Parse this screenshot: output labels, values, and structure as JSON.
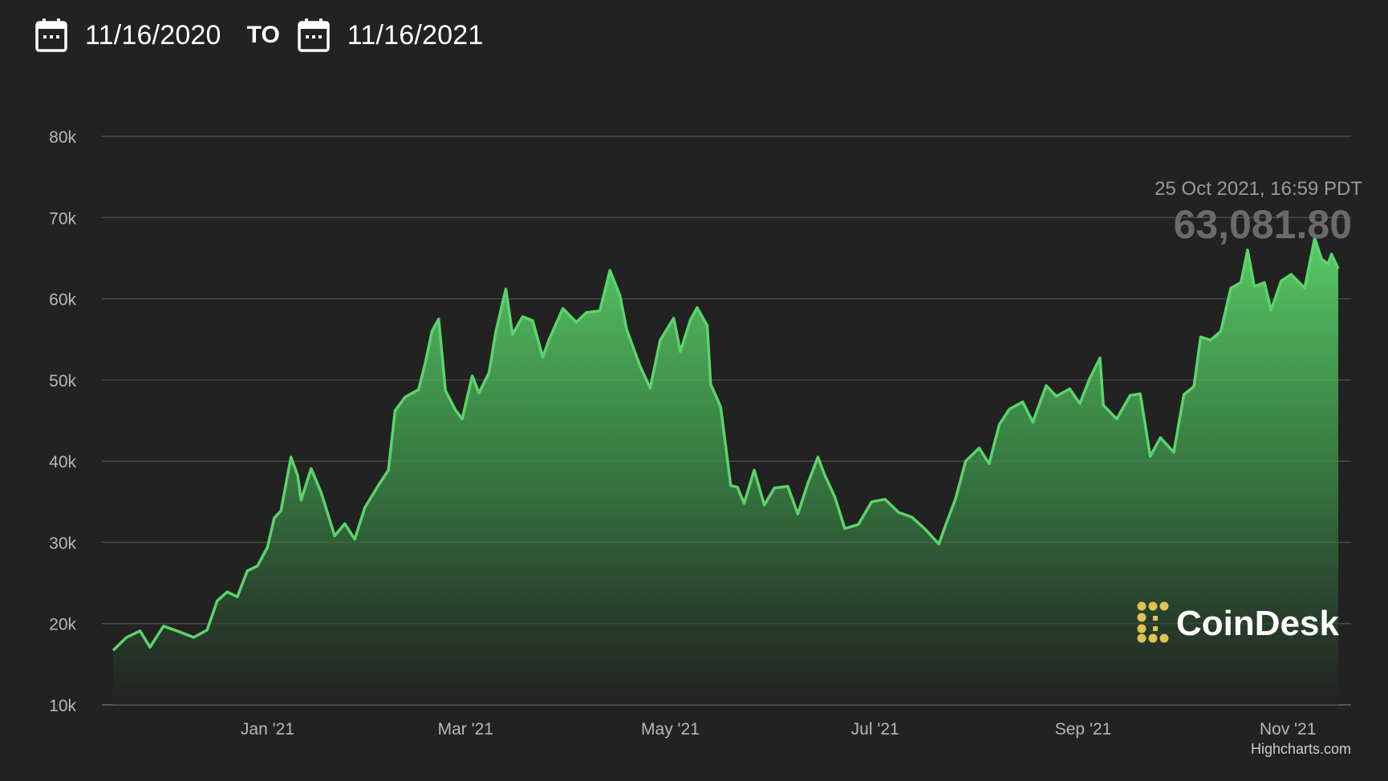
{
  "range": {
    "from": "11/16/2020",
    "to_label": "TO",
    "to": "11/16/2021"
  },
  "icons": {
    "from": "calendar-icon",
    "to": "calendar-icon"
  },
  "tooltip": {
    "date": "25 Oct 2021, 16:59 PDT",
    "value": "63,081.80"
  },
  "brand": {
    "name": "CoinDesk",
    "logo_color": "#e0c252"
  },
  "credits": "Highcharts.com",
  "colors": {
    "line": "#5bd46a",
    "background": "#222222",
    "grid": "#4a4a4a"
  },
  "chart_data": {
    "type": "area",
    "title": "",
    "xlabel": "",
    "ylabel": "",
    "ylim": [
      10000,
      80000
    ],
    "y_ticks": [
      "10k",
      "20k",
      "30k",
      "40k",
      "50k",
      "60k",
      "70k",
      "80k"
    ],
    "y_tick_values": [
      10000,
      20000,
      30000,
      40000,
      50000,
      60000,
      70000,
      80000
    ],
    "x_tick_labels": [
      "Jan '21",
      "Mar '21",
      "May '21",
      "Jul '21",
      "Sep '21",
      "Nov '21"
    ],
    "x_tick_dates": [
      "2021-01-01",
      "2021-03-01",
      "2021-05-01",
      "2021-07-01",
      "2021-09-01",
      "2021-11-01"
    ],
    "x_range": [
      "2020-11-16",
      "2021-11-16"
    ],
    "grid": true,
    "legend": "none",
    "series": [
      {
        "points": [
          [
            "2020-11-16",
            16700
          ],
          [
            "2020-11-20",
            18300
          ],
          [
            "2020-11-24",
            19100
          ],
          [
            "2020-11-27",
            17100
          ],
          [
            "2020-12-01",
            19700
          ],
          [
            "2020-12-05",
            19100
          ],
          [
            "2020-12-10",
            18300
          ],
          [
            "2020-12-14",
            19200
          ],
          [
            "2020-12-17",
            22800
          ],
          [
            "2020-12-20",
            23900
          ],
          [
            "2020-12-23",
            23300
          ],
          [
            "2020-12-26",
            26500
          ],
          [
            "2020-12-29",
            27100
          ],
          [
            "2021-01-01",
            29400
          ],
          [
            "2021-01-03",
            33000
          ],
          [
            "2021-01-05",
            33900
          ],
          [
            "2021-01-08",
            40500
          ],
          [
            "2021-01-10",
            38200
          ],
          [
            "2021-01-11",
            35200
          ],
          [
            "2021-01-14",
            39100
          ],
          [
            "2021-01-17",
            36100
          ],
          [
            "2021-01-21",
            30800
          ],
          [
            "2021-01-24",
            32300
          ],
          [
            "2021-01-27",
            30400
          ],
          [
            "2021-01-30",
            34300
          ],
          [
            "2021-02-03",
            37000
          ],
          [
            "2021-02-06",
            38900
          ],
          [
            "2021-02-08",
            46200
          ],
          [
            "2021-02-11",
            47900
          ],
          [
            "2021-02-15",
            48800
          ],
          [
            "2021-02-17",
            52100
          ],
          [
            "2021-02-19",
            56000
          ],
          [
            "2021-02-21",
            57500
          ],
          [
            "2021-02-23",
            48700
          ],
          [
            "2021-02-26",
            46300
          ],
          [
            "2021-02-28",
            45200
          ],
          [
            "2021-03-03",
            50500
          ],
          [
            "2021-03-05",
            48400
          ],
          [
            "2021-03-08",
            50900
          ],
          [
            "2021-03-10",
            55900
          ],
          [
            "2021-03-13",
            61200
          ],
          [
            "2021-03-15",
            55600
          ],
          [
            "2021-03-18",
            57800
          ],
          [
            "2021-03-21",
            57300
          ],
          [
            "2021-03-24",
            52800
          ],
          [
            "2021-03-26",
            55100
          ],
          [
            "2021-03-30",
            58800
          ],
          [
            "2021-04-03",
            57100
          ],
          [
            "2021-04-06",
            58300
          ],
          [
            "2021-04-10",
            58500
          ],
          [
            "2021-04-13",
            63500
          ],
          [
            "2021-04-16",
            60400
          ],
          [
            "2021-04-18",
            56200
          ],
          [
            "2021-04-22",
            51700
          ],
          [
            "2021-04-25",
            49000
          ],
          [
            "2021-04-28",
            54900
          ],
          [
            "2021-05-02",
            57600
          ],
          [
            "2021-05-04",
            53500
          ],
          [
            "2021-05-07",
            57400
          ],
          [
            "2021-05-09",
            58900
          ],
          [
            "2021-05-12",
            56700
          ],
          [
            "2021-05-13",
            49500
          ],
          [
            "2021-05-16",
            46700
          ],
          [
            "2021-05-19",
            37000
          ],
          [
            "2021-05-21",
            36800
          ],
          [
            "2021-05-23",
            34800
          ],
          [
            "2021-05-26",
            38900
          ],
          [
            "2021-05-29",
            34600
          ],
          [
            "2021-06-01",
            36700
          ],
          [
            "2021-06-05",
            36900
          ],
          [
            "2021-06-08",
            33500
          ],
          [
            "2021-06-11",
            37300
          ],
          [
            "2021-06-14",
            40500
          ],
          [
            "2021-06-16",
            38300
          ],
          [
            "2021-06-19",
            35600
          ],
          [
            "2021-06-22",
            31700
          ],
          [
            "2021-06-26",
            32200
          ],
          [
            "2021-06-30",
            35000
          ],
          [
            "2021-07-04",
            35300
          ],
          [
            "2021-07-08",
            33700
          ],
          [
            "2021-07-12",
            33100
          ],
          [
            "2021-07-16",
            31600
          ],
          [
            "2021-07-20",
            29800
          ],
          [
            "2021-07-22",
            32100
          ],
          [
            "2021-07-25",
            35400
          ],
          [
            "2021-07-28",
            40000
          ],
          [
            "2021-08-01",
            41600
          ],
          [
            "2021-08-04",
            39700
          ],
          [
            "2021-08-07",
            44500
          ],
          [
            "2021-08-10",
            46400
          ],
          [
            "2021-08-14",
            47300
          ],
          [
            "2021-08-17",
            44800
          ],
          [
            "2021-08-21",
            49300
          ],
          [
            "2021-08-24",
            48000
          ],
          [
            "2021-08-28",
            48900
          ],
          [
            "2021-08-31",
            47100
          ],
          [
            "2021-09-03",
            50200
          ],
          [
            "2021-09-06",
            52700
          ],
          [
            "2021-09-07",
            46900
          ],
          [
            "2021-09-11",
            45200
          ],
          [
            "2021-09-15",
            48100
          ],
          [
            "2021-09-18",
            48300
          ],
          [
            "2021-09-21",
            40600
          ],
          [
            "2021-09-24",
            42900
          ],
          [
            "2021-09-28",
            41100
          ],
          [
            "2021-10-01",
            48200
          ],
          [
            "2021-10-04",
            49200
          ],
          [
            "2021-10-06",
            55300
          ],
          [
            "2021-10-09",
            54900
          ],
          [
            "2021-10-12",
            56000
          ],
          [
            "2021-10-15",
            61300
          ],
          [
            "2021-10-18",
            62000
          ],
          [
            "2021-10-20",
            66000
          ],
          [
            "2021-10-22",
            61500
          ],
          [
            "2021-10-25",
            62000
          ],
          [
            "2021-10-27",
            58600
          ],
          [
            "2021-10-30",
            62200
          ],
          [
            "2021-11-02",
            63000
          ],
          [
            "2021-11-06",
            61300
          ],
          [
            "2021-11-09",
            67500
          ],
          [
            "2021-11-11",
            64900
          ],
          [
            "2021-11-13",
            64300
          ],
          [
            "2021-11-14",
            65500
          ],
          [
            "2021-11-16",
            63700
          ]
        ]
      }
    ]
  }
}
